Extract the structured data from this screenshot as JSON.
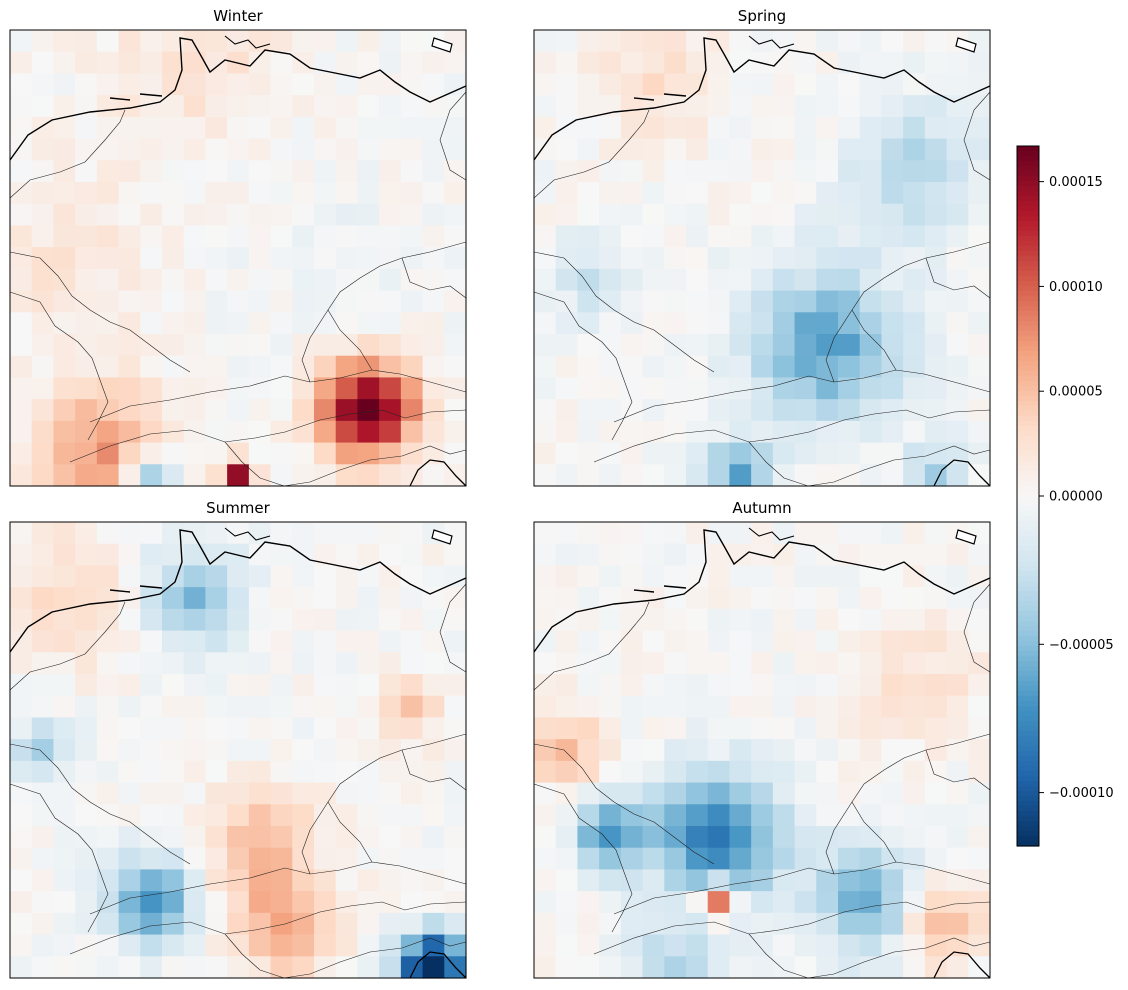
{
  "figure": {
    "panels": [
      {
        "id": "winter",
        "title": "Winter"
      },
      {
        "id": "spring",
        "title": "Spring"
      },
      {
        "id": "summer",
        "title": "Summer"
      },
      {
        "id": "autumn",
        "title": "Autumn"
      }
    ],
    "colorbar": {
      "colormap": "RdBu_r",
      "vmin": -0.000118,
      "vmax": 0.000167,
      "center": 0,
      "ticks": [
        {
          "value": 0.00015,
          "label": "0.00015"
        },
        {
          "value": 0.0001,
          "label": "0.00010"
        },
        {
          "value": 5e-05,
          "label": "0.00005"
        },
        {
          "value": 0,
          "label": "0.00000"
        },
        {
          "value": -5e-05,
          "label": "−0.00005"
        },
        {
          "value": -0.0001,
          "label": "−0.00010"
        }
      ]
    },
    "colors": {
      "coastline": "#000000",
      "borders": "#222222",
      "frame": "#000000"
    }
  }
}
